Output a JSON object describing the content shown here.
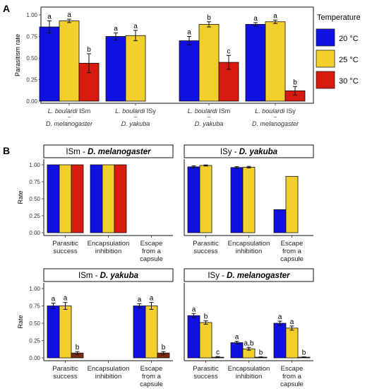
{
  "panel_labels": [
    "A",
    "B"
  ],
  "legend": {
    "title": "Temperature",
    "entries": [
      {
        "label": "20 °C",
        "color": "#1010E0"
      },
      {
        "label": "25 °C",
        "color": "#F2CF2C"
      },
      {
        "label": "30 °C",
        "color": "#D81B10"
      }
    ]
  },
  "chart_data": [
    {
      "type": "bar",
      "panel": "A",
      "ylabel": "Parasitism rate",
      "ylim": [
        0,
        1.0
      ],
      "yticks": [
        "0.00",
        "0.25",
        "0.50",
        "0.75",
        "1.00"
      ],
      "groups": [
        {
          "wasp": "L. boulardi",
          "strain": " ISm",
          "host": "D. melanogaster",
          "bars": [
            {
              "value": 0.86,
              "err": 0.07,
              "letter": "a"
            },
            {
              "value": 0.93,
              "err": 0.02,
              "letter": "a"
            },
            {
              "value": 0.44,
              "err": 0.11,
              "letter": "b"
            }
          ]
        },
        {
          "wasp": "L. boulardi",
          "strain": " ISy",
          "host": "D. yakuba",
          "bars": [
            {
              "value": 0.75,
              "err": 0.04,
              "letter": "a"
            },
            {
              "value": 0.76,
              "err": 0.06,
              "letter": "a"
            },
            null
          ]
        },
        {
          "wasp": "L. boulardi",
          "strain": " ISm",
          "host": "D. yakuba",
          "bars": [
            {
              "value": 0.7,
              "err": 0.05,
              "letter": "a"
            },
            {
              "value": 0.89,
              "err": 0.03,
              "letter": "b"
            },
            {
              "value": 0.45,
              "err": 0.08,
              "letter": "c"
            }
          ]
        },
        {
          "wasp": "L. boulardi",
          "strain": " ISy",
          "host": "D. melanogaster",
          "bars": [
            {
              "value": 0.89,
              "err": 0.02,
              "letter": "a"
            },
            {
              "value": 0.92,
              "err": 0.02,
              "letter": "a"
            },
            {
              "value": 0.12,
              "err": 0.05,
              "letter": "b"
            }
          ]
        }
      ]
    },
    {
      "type": "bar",
      "panel": "B",
      "title": "ISm - ",
      "title_italic": "D. melanogaster",
      "ylabel": "Rate",
      "ylim": [
        0,
        1.0
      ],
      "yticks": [
        "0.00",
        "0.25",
        "0.50",
        "0.75",
        "1.00"
      ],
      "categories": [
        [
          "Parasitic",
          "success"
        ],
        [
          "Encapsulation",
          "inhibition"
        ],
        [
          "Escape",
          "from a",
          "capsule"
        ]
      ],
      "colors": [
        "#1010E0",
        "#F2CF2C",
        "#D81B10"
      ],
      "groups": [
        [
          {
            "value": 1.0
          },
          {
            "value": 1.0
          },
          {
            "value": 1.0
          }
        ],
        [
          {
            "value": 1.0
          },
          {
            "value": 1.0
          },
          {
            "value": 1.0
          }
        ],
        [
          null,
          null,
          null
        ]
      ]
    },
    {
      "type": "bar",
      "panel": "B",
      "title": "ISy - ",
      "title_italic": "D. yakuba",
      "ylabel": "",
      "ylim": [
        0,
        1.0
      ],
      "yticks": [],
      "categories": [
        [
          "Parasitic",
          "success"
        ],
        [
          "Encapsulation",
          "inhibition"
        ],
        [
          "Escape",
          "from a",
          "capsule"
        ]
      ],
      "colors": [
        "#1010E0",
        "#F2CF2C",
        "#D81B10"
      ],
      "groups": [
        [
          {
            "value": 0.97,
            "err": 0.015
          },
          {
            "value": 0.99,
            "err": 0.008
          },
          null
        ],
        [
          {
            "value": 0.96,
            "err": 0.012
          },
          {
            "value": 0.965,
            "err": 0.012
          },
          null
        ],
        [
          {
            "value": 0.34
          },
          {
            "value": 0.83
          },
          null
        ]
      ]
    },
    {
      "type": "bar",
      "panel": "B",
      "title": "ISm - ",
      "title_italic": "D. yakuba",
      "ylabel": "Rate",
      "ylim": [
        0,
        1.0
      ],
      "yticks": [
        "0.00",
        "0.25",
        "0.50",
        "0.75",
        "1.00"
      ],
      "categories": [
        [
          "Parasitic",
          "success"
        ],
        [
          "Encapsulation",
          "inhibition"
        ],
        [
          "Escape",
          "from a",
          "capsule"
        ]
      ],
      "colors": [
        "#1010E0",
        "#F2CF2C",
        "#7A2A10"
      ],
      "groups": [
        [
          {
            "value": 0.75,
            "err": 0.04,
            "letter": "a"
          },
          {
            "value": 0.75,
            "err": 0.05,
            "letter": "a"
          },
          {
            "value": 0.07,
            "err": 0.02,
            "letter": "b"
          }
        ],
        [
          null,
          null,
          null
        ],
        [
          {
            "value": 0.75,
            "err": 0.03,
            "letter": "a"
          },
          {
            "value": 0.75,
            "err": 0.05,
            "letter": "a"
          },
          {
            "value": 0.07,
            "err": 0.02,
            "letter": "b"
          }
        ]
      ]
    },
    {
      "type": "bar",
      "panel": "B",
      "title": "ISy - ",
      "title_italic": "D. melanogaster",
      "ylabel": "",
      "ylim": [
        0,
        1.0
      ],
      "yticks": [],
      "categories": [
        [
          "Parasitic",
          "success"
        ],
        [
          "Encapsulation",
          "inhibition"
        ],
        [
          "Escape",
          "from a",
          "capsule"
        ]
      ],
      "colors": [
        "#1010E0",
        "#F2CF2C",
        "#7A2A10"
      ],
      "groups": [
        [
          {
            "value": 0.61,
            "err": 0.03,
            "letter": "a"
          },
          {
            "value": 0.51,
            "err": 0.025,
            "letter": "b"
          },
          {
            "value": 0.01,
            "err": 0.01,
            "letter": "c"
          }
        ],
        [
          {
            "value": 0.22,
            "err": 0.02,
            "letter": "a"
          },
          {
            "value": 0.13,
            "err": 0.02,
            "letter": "a,b"
          },
          {
            "value": 0.01,
            "err": 0.005,
            "letter": "b"
          }
        ],
        [
          {
            "value": 0.5,
            "err": 0.03,
            "letter": "a"
          },
          {
            "value": 0.43,
            "err": 0.03,
            "letter": "a"
          },
          {
            "value": 0.01,
            "err": 0.005,
            "letter": "b"
          }
        ]
      ]
    }
  ]
}
